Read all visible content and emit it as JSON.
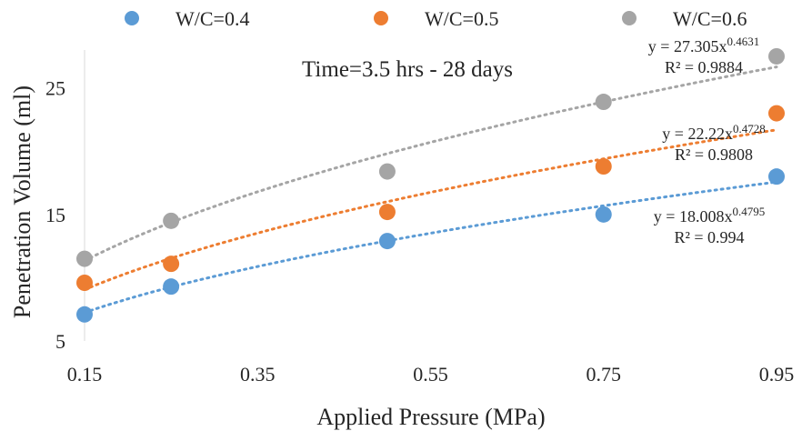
{
  "chart_data": {
    "type": "scatter",
    "annotation": "Time=3.5 hrs - 28 days",
    "xlabel": "Applied Pressure (MPa)",
    "ylabel": "Penetration Volume (ml)",
    "xlim": [
      0.15,
      0.95
    ],
    "ylim": [
      5,
      28
    ],
    "xticks": [
      "0.15",
      "0.35",
      "0.55",
      "0.75",
      "0.95"
    ],
    "xtick_values": [
      0.15,
      0.35,
      0.55,
      0.75,
      0.95
    ],
    "yticks": [
      "5",
      "15",
      "25"
    ],
    "ytick_values": [
      5,
      15,
      25
    ],
    "grid": false,
    "legend_position": "top",
    "x": [
      0.15,
      0.25,
      0.5,
      0.75,
      0.95
    ],
    "series": [
      {
        "name": "W/C=0.4",
        "color": "#5B9BD5",
        "values": [
          7.1,
          9.3,
          12.9,
          15.0,
          18.0
        ],
        "trendline": {
          "type": "power",
          "a": 18.008,
          "b": 0.4795
        },
        "equation": {
          "base": "y = 18.008x",
          "exp": "0.4795"
        },
        "r2": "R² = 0.994"
      },
      {
        "name": "W/C=0.5",
        "color": "#ED7D31",
        "values": [
          9.6,
          11.1,
          15.2,
          18.8,
          23.0
        ],
        "trendline": {
          "type": "power",
          "a": 22.22,
          "b": 0.4728
        },
        "equation": {
          "base": "y = 22.22x",
          "exp": "0.4728"
        },
        "r2": "R² = 0.9808"
      },
      {
        "name": "W/C=0.6",
        "color": "#A5A5A5",
        "values": [
          11.5,
          14.5,
          18.4,
          23.9,
          27.5
        ],
        "trendline": {
          "type": "power",
          "a": 27.305,
          "b": 0.4631
        },
        "equation": {
          "base": "y = 27.305x",
          "exp": "0.4631"
        },
        "r2": "R² = 0.9884"
      }
    ]
  }
}
